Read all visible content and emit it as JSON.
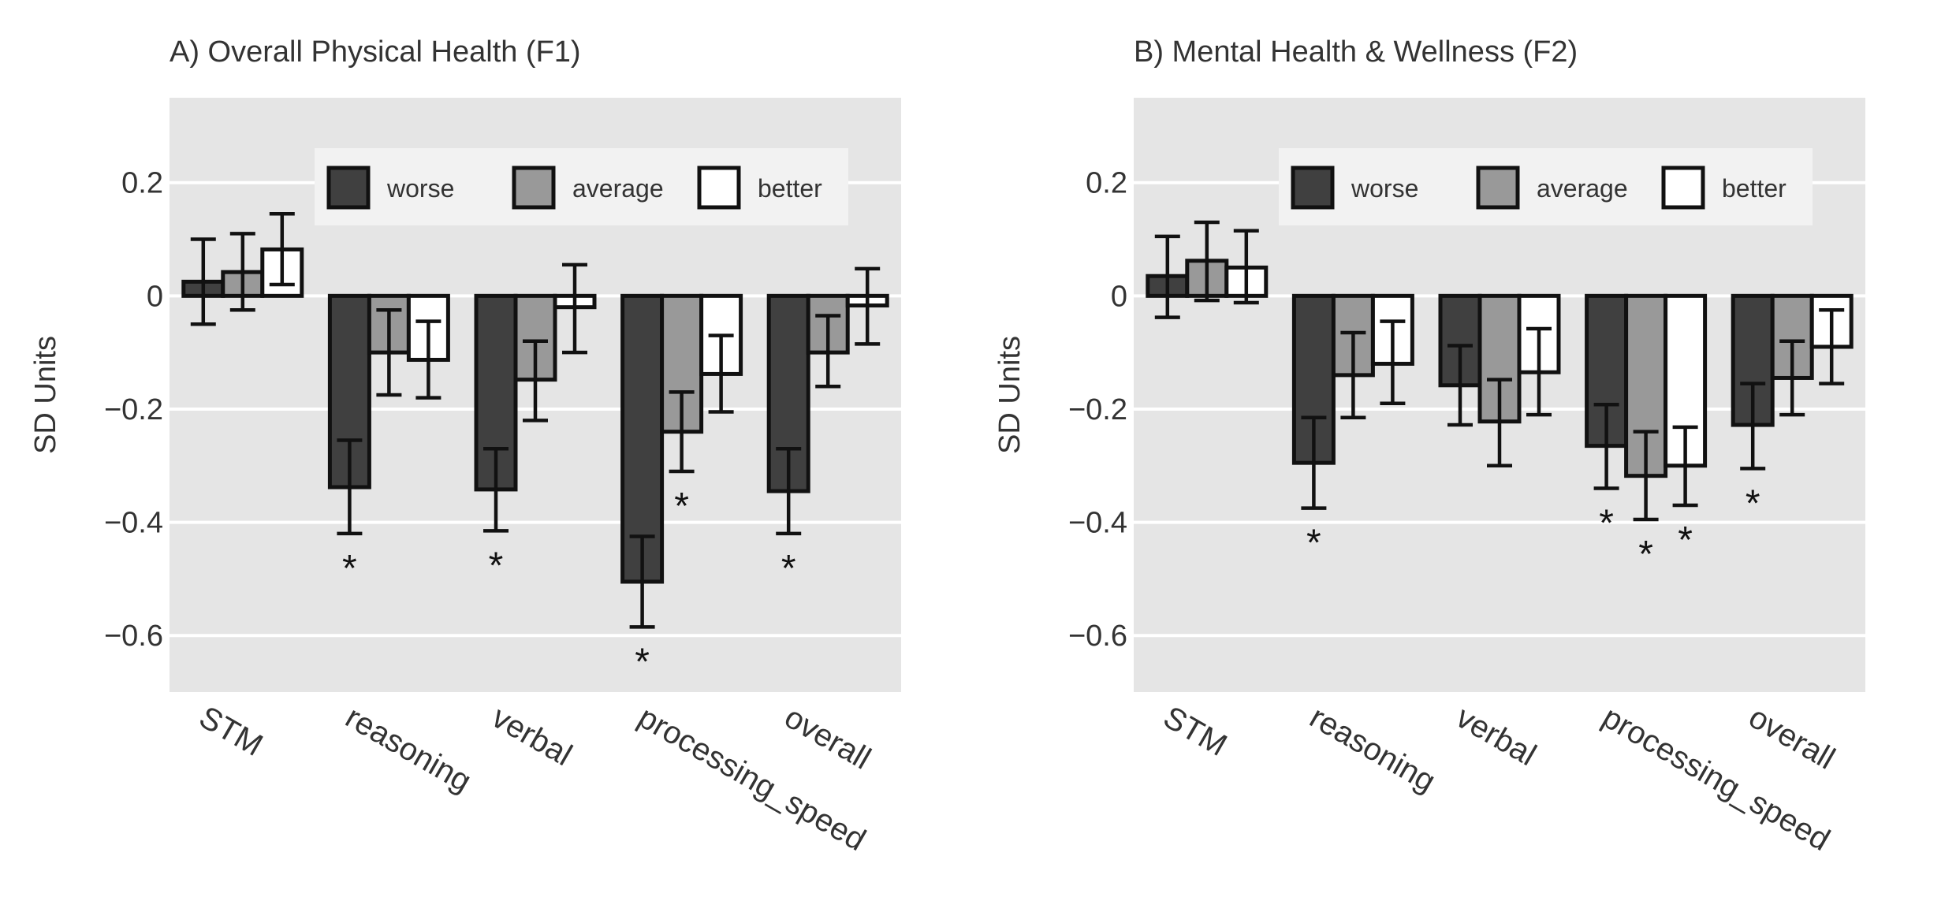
{
  "chart_data": [
    {
      "type": "bar",
      "title": "A)  Overall Physical Health (F1)",
      "ylabel": "SD Units",
      "xlabel": "",
      "categories": [
        "STM",
        "reasoning",
        "verbal",
        "processing_speed",
        "overall"
      ],
      "ylim": [
        -0.7,
        0.35
      ],
      "yticks": [
        0.2,
        0,
        -0.2,
        -0.4,
        -0.6
      ],
      "ytick_labels": [
        "0.2",
        "0",
        "−0.2",
        "−0.4",
        "−0.6"
      ],
      "grid": true,
      "legend": {
        "placement": "top-right",
        "entries": [
          "worse",
          "average",
          "better"
        ]
      },
      "series": [
        {
          "name": "worse",
          "color": "#404040",
          "values": [
            0.025,
            -0.338,
            -0.342,
            -0.505,
            -0.345
          ],
          "ci_low": [
            -0.05,
            -0.42,
            -0.415,
            -0.585,
            -0.42
          ],
          "ci_high": [
            0.1,
            -0.255,
            -0.27,
            -0.425,
            -0.27
          ],
          "significant": [
            false,
            true,
            true,
            true,
            true
          ]
        },
        {
          "name": "average",
          "color": "#999999",
          "values": [
            0.042,
            -0.1,
            -0.148,
            -0.24,
            -0.1
          ],
          "ci_low": [
            -0.025,
            -0.175,
            -0.22,
            -0.31,
            -0.16
          ],
          "ci_high": [
            0.11,
            -0.025,
            -0.08,
            -0.17,
            -0.035
          ],
          "significant": [
            false,
            false,
            false,
            true,
            false
          ]
        },
        {
          "name": "better",
          "color": "#ffffff",
          "values": [
            0.082,
            -0.113,
            -0.02,
            -0.138,
            -0.017
          ],
          "ci_low": [
            0.02,
            -0.18,
            -0.1,
            -0.205,
            -0.085
          ],
          "ci_high": [
            0.145,
            -0.045,
            0.055,
            -0.07,
            0.048
          ],
          "significant": [
            false,
            false,
            false,
            false,
            false
          ]
        }
      ]
    },
    {
      "type": "bar",
      "title": "B)  Mental Health & Wellness (F2)",
      "ylabel": "SD Units",
      "xlabel": "",
      "categories": [
        "STM",
        "reasoning",
        "verbal",
        "processing_speed",
        "overall"
      ],
      "ylim": [
        -0.7,
        0.35
      ],
      "yticks": [
        0.2,
        0,
        -0.2,
        -0.4,
        -0.6
      ],
      "ytick_labels": [
        "0.2",
        "0",
        "−0.2",
        "−0.4",
        "−0.6"
      ],
      "grid": true,
      "legend": {
        "placement": "top-right",
        "entries": [
          "worse",
          "average",
          "better"
        ]
      },
      "series": [
        {
          "name": "worse",
          "color": "#404040",
          "values": [
            0.035,
            -0.295,
            -0.158,
            -0.265,
            -0.228
          ],
          "ci_low": [
            -0.038,
            -0.375,
            -0.228,
            -0.34,
            -0.305
          ],
          "ci_high": [
            0.105,
            -0.215,
            -0.088,
            -0.192,
            -0.155
          ],
          "significant": [
            false,
            true,
            false,
            true,
            true
          ]
        },
        {
          "name": "average",
          "color": "#999999",
          "values": [
            0.062,
            -0.14,
            -0.222,
            -0.318,
            -0.145
          ],
          "ci_low": [
            -0.008,
            -0.215,
            -0.3,
            -0.395,
            -0.21
          ],
          "ci_high": [
            0.13,
            -0.065,
            -0.148,
            -0.24,
            -0.08
          ],
          "significant": [
            false,
            false,
            false,
            true,
            false
          ]
        },
        {
          "name": "better",
          "color": "#ffffff",
          "values": [
            0.05,
            -0.12,
            -0.135,
            -0.3,
            -0.09
          ],
          "ci_low": [
            -0.012,
            -0.19,
            -0.21,
            -0.37,
            -0.155
          ],
          "ci_high": [
            0.115,
            -0.045,
            -0.058,
            -0.232,
            -0.025
          ],
          "significant": [
            false,
            false,
            false,
            true,
            false
          ]
        }
      ]
    }
  ],
  "significance_marker": "*"
}
